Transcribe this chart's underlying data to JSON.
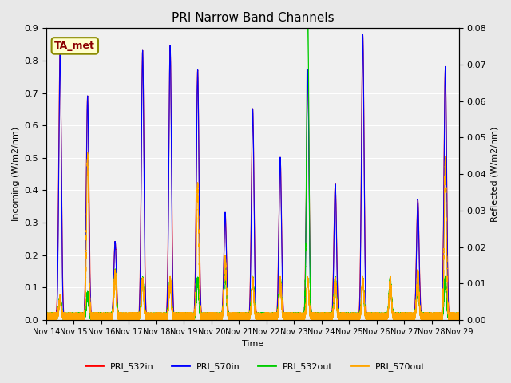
{
  "title": "PRI Narrow Band Channels",
  "xlabel": "Time",
  "ylabel_left": "Incoming (W/m2/nm)",
  "ylabel_right": "Reflected (W/m2/nm)",
  "ylim_left": [
    0.0,
    0.9
  ],
  "ylim_right": [
    0.0,
    0.08
  ],
  "annotation": "TA_met",
  "annotation_bbox": {
    "boxstyle": "round,pad=0.3",
    "facecolor": "#FFFFCC",
    "edgecolor": "#8B8B00",
    "linewidth": 1.5
  },
  "x_tick_labels": [
    "Nov 14",
    "Nov 15",
    "Nov 16",
    "Nov 17",
    "Nov 18",
    "Nov 19",
    "Nov 20",
    "Nov 21",
    "Nov 22",
    "Nov 23",
    "Nov 24",
    "Nov 25",
    "Nov 26",
    "Nov 27",
    "Nov 28",
    "Nov 29"
  ],
  "colors": {
    "PRI_532in": "#FF0000",
    "PRI_570in": "#0000FF",
    "PRI_532out": "#00CC00",
    "PRI_570out": "#FFA500"
  },
  "legend_labels": [
    "PRI_532in",
    "PRI_570in",
    "PRI_532out",
    "PRI_570out"
  ],
  "background_color": "#E8E8E8",
  "plot_bg_color": "#F0F0F0",
  "grid_color": "#FFFFFF",
  "num_days": 15,
  "points_per_day": 1440,
  "peak_times_fraction": [
    0.5
  ],
  "day_peaks": {
    "14": {
      "PRI_532in": 0.83,
      "PRI_570in": 0.83,
      "PRI_532out": 0.005,
      "PRI_570out": 0.005
    },
    "15": {
      "PRI_532in": 0.69,
      "PRI_570in": 0.69,
      "PRI_532out": 0.006,
      "PRI_570out": 0.044
    },
    "16": {
      "PRI_532in": 0.24,
      "PRI_570in": 0.24,
      "PRI_532out": 0.012,
      "PRI_570out": 0.012
    },
    "17": {
      "PRI_532in": 0.83,
      "PRI_570in": 0.83,
      "PRI_532out": 0.01,
      "PRI_570out": 0.01
    },
    "18": {
      "PRI_532in": 0.845,
      "PRI_570in": 0.845,
      "PRI_532out": 0.01,
      "PRI_570out": 0.01
    },
    "19": {
      "PRI_532in": 0.77,
      "PRI_570in": 0.77,
      "PRI_532out": 0.01,
      "PRI_570out": 0.036
    },
    "20": {
      "PRI_532in": 0.33,
      "PRI_570in": 0.33,
      "PRI_532out": 0.013,
      "PRI_570out": 0.016
    },
    "21": {
      "PRI_532in": 0.65,
      "PRI_570in": 0.65,
      "PRI_532out": 0.01,
      "PRI_570out": 0.01
    },
    "22": {
      "PRI_532in": 0.5,
      "PRI_570in": 0.5,
      "PRI_532out": 0.01,
      "PRI_570out": 0.01
    },
    "23": {
      "PRI_532in": 0.77,
      "PRI_570in": 0.77,
      "PRI_532out": 0.087,
      "PRI_570out": 0.01
    },
    "24": {
      "PRI_532in": 0.42,
      "PRI_570in": 0.42,
      "PRI_532out": 0.01,
      "PRI_570out": 0.01
    },
    "25": {
      "PRI_532in": 0.88,
      "PRI_570in": 0.88,
      "PRI_532out": 0.01,
      "PRI_570out": 0.01
    },
    "26": {
      "PRI_532in": 0.1,
      "PRI_570in": 0.1,
      "PRI_532out": 0.01,
      "PRI_570out": 0.01
    },
    "27": {
      "PRI_532in": 0.37,
      "PRI_570in": 0.37,
      "PRI_532out": 0.01,
      "PRI_570out": 0.012
    },
    "28": {
      "PRI_532in": 0.78,
      "PRI_570in": 0.78,
      "PRI_532out": 0.01,
      "PRI_570out": 0.043
    }
  }
}
